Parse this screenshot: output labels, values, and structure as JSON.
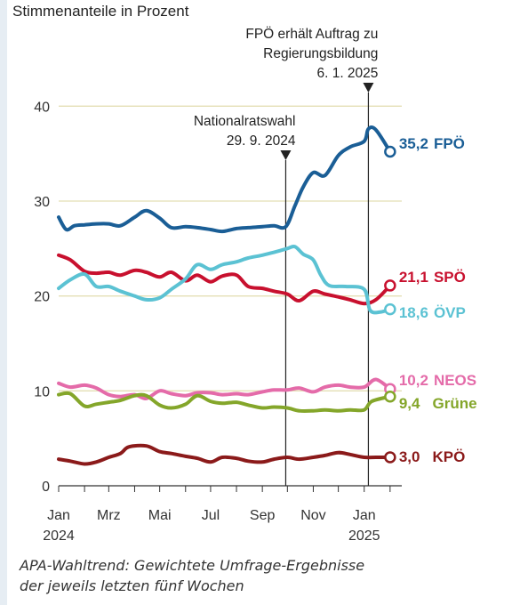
{
  "chart_data": {
    "type": "line",
    "subtitle": "Stimmenanteile in Prozent",
    "y_ticks": [
      0,
      10,
      20,
      30,
      40
    ],
    "ylim": [
      0,
      42
    ],
    "xlim": [
      "2024-01-01",
      "2025-02-15"
    ],
    "x_ticks": [
      {
        "date": "2024-01-01",
        "label": "Jan",
        "year": "2024"
      },
      {
        "date": "2024-03-01",
        "label": "Mrz",
        "year": ""
      },
      {
        "date": "2024-05-01",
        "label": "Mai",
        "year": ""
      },
      {
        "date": "2024-07-01",
        "label": "Jul",
        "year": ""
      },
      {
        "date": "2024-09-01",
        "label": "Sep",
        "year": ""
      },
      {
        "date": "2024-11-01",
        "label": "Nov",
        "year": ""
      },
      {
        "date": "2025-01-01",
        "label": "Jan",
        "year": "2025"
      }
    ],
    "annotations": [
      {
        "date": "2024-09-29",
        "lines": [
          "Nationalratswahl",
          "29. 9. 2024"
        ]
      },
      {
        "date": "2025-01-06",
        "lines": [
          "FPÖ erhält Auftrag zu",
          "Regierungsbildung",
          "6. 1. 2025"
        ]
      }
    ],
    "series": [
      {
        "name": "FPÖ",
        "color": "#1a5e96",
        "end_label": "35,2",
        "end_value": 35.2,
        "points": [
          [
            "2024-01-01",
            28.3
          ],
          [
            "2024-01-10",
            27.0
          ],
          [
            "2024-01-20",
            27.4
          ],
          [
            "2024-02-01",
            27.5
          ],
          [
            "2024-02-15",
            27.6
          ],
          [
            "2024-03-01",
            27.6
          ],
          [
            "2024-03-15",
            27.4
          ],
          [
            "2024-04-01",
            28.3
          ],
          [
            "2024-04-15",
            29.0
          ],
          [
            "2024-05-01",
            28.2
          ],
          [
            "2024-05-15",
            27.2
          ],
          [
            "2024-06-01",
            27.3
          ],
          [
            "2024-06-15",
            27.2
          ],
          [
            "2024-07-01",
            27.0
          ],
          [
            "2024-07-15",
            26.8
          ],
          [
            "2024-08-01",
            27.1
          ],
          [
            "2024-08-15",
            27.2
          ],
          [
            "2024-09-01",
            27.3
          ],
          [
            "2024-09-15",
            27.4
          ],
          [
            "2024-09-29",
            27.3
          ],
          [
            "2024-10-10",
            29.5
          ],
          [
            "2024-10-20",
            31.5
          ],
          [
            "2024-11-01",
            33.0
          ],
          [
            "2024-11-15",
            32.7
          ],
          [
            "2024-12-01",
            34.8
          ],
          [
            "2024-12-15",
            35.7
          ],
          [
            "2025-01-01",
            36.3
          ],
          [
            "2025-01-06",
            37.6
          ],
          [
            "2025-01-15",
            37.5
          ],
          [
            "2025-02-01",
            35.2
          ]
        ]
      },
      {
        "name": "SPÖ",
        "color": "#c8102e",
        "end_label": "21,1",
        "end_value": 21.1,
        "points": [
          [
            "2024-01-01",
            24.3
          ],
          [
            "2024-01-15",
            23.8
          ],
          [
            "2024-02-01",
            22.6
          ],
          [
            "2024-02-15",
            22.4
          ],
          [
            "2024-03-01",
            22.5
          ],
          [
            "2024-03-15",
            22.2
          ],
          [
            "2024-04-01",
            22.7
          ],
          [
            "2024-04-15",
            22.5
          ],
          [
            "2024-05-01",
            22.0
          ],
          [
            "2024-05-15",
            22.5
          ],
          [
            "2024-06-01",
            21.6
          ],
          [
            "2024-06-15",
            22.2
          ],
          [
            "2024-07-01",
            21.5
          ],
          [
            "2024-07-15",
            22.1
          ],
          [
            "2024-08-01",
            22.2
          ],
          [
            "2024-08-15",
            21.0
          ],
          [
            "2024-09-01",
            20.8
          ],
          [
            "2024-09-15",
            20.5
          ],
          [
            "2024-10-01",
            20.2
          ],
          [
            "2024-10-15",
            19.5
          ],
          [
            "2024-11-01",
            20.5
          ],
          [
            "2024-11-15",
            20.2
          ],
          [
            "2024-12-01",
            19.9
          ],
          [
            "2024-12-15",
            19.6
          ],
          [
            "2025-01-01",
            19.2
          ],
          [
            "2025-01-15",
            19.6
          ],
          [
            "2025-02-01",
            21.1
          ]
        ]
      },
      {
        "name": "ÖVP",
        "color": "#5bc2d3",
        "end_label": "18,6",
        "end_value": 18.6,
        "points": [
          [
            "2024-01-01",
            20.8
          ],
          [
            "2024-01-15",
            21.7
          ],
          [
            "2024-02-01",
            22.3
          ],
          [
            "2024-02-15",
            21.0
          ],
          [
            "2024-03-01",
            21.0
          ],
          [
            "2024-03-15",
            20.5
          ],
          [
            "2024-04-01",
            20.0
          ],
          [
            "2024-04-15",
            19.6
          ],
          [
            "2024-05-01",
            19.8
          ],
          [
            "2024-05-15",
            20.7
          ],
          [
            "2024-06-01",
            21.8
          ],
          [
            "2024-06-15",
            23.3
          ],
          [
            "2024-07-01",
            22.8
          ],
          [
            "2024-07-15",
            23.3
          ],
          [
            "2024-08-01",
            23.6
          ],
          [
            "2024-08-15",
            24.0
          ],
          [
            "2024-09-01",
            24.3
          ],
          [
            "2024-09-15",
            24.6
          ],
          [
            "2024-10-01",
            25.0
          ],
          [
            "2024-10-10",
            25.2
          ],
          [
            "2024-10-20",
            24.4
          ],
          [
            "2024-11-01",
            23.8
          ],
          [
            "2024-11-10",
            22.2
          ],
          [
            "2024-11-20",
            21.1
          ],
          [
            "2024-12-10",
            21.0
          ],
          [
            "2025-01-01",
            20.7
          ],
          [
            "2025-01-08",
            18.5
          ],
          [
            "2025-01-20",
            18.3
          ],
          [
            "2025-02-01",
            18.6
          ]
        ]
      },
      {
        "name": "NEOS",
        "color": "#e46ba9",
        "end_label": "10,2",
        "end_value": 10.2,
        "points": [
          [
            "2024-01-01",
            10.8
          ],
          [
            "2024-01-15",
            10.4
          ],
          [
            "2024-02-01",
            10.6
          ],
          [
            "2024-02-15",
            10.3
          ],
          [
            "2024-03-01",
            9.6
          ],
          [
            "2024-03-15",
            9.4
          ],
          [
            "2024-04-01",
            9.6
          ],
          [
            "2024-04-15",
            9.2
          ],
          [
            "2024-05-01",
            10.0
          ],
          [
            "2024-05-15",
            9.7
          ],
          [
            "2024-06-01",
            9.5
          ],
          [
            "2024-06-15",
            9.8
          ],
          [
            "2024-07-01",
            9.8
          ],
          [
            "2024-07-15",
            9.6
          ],
          [
            "2024-08-01",
            9.7
          ],
          [
            "2024-08-15",
            9.6
          ],
          [
            "2024-09-01",
            9.9
          ],
          [
            "2024-09-15",
            10.1
          ],
          [
            "2024-10-01",
            10.1
          ],
          [
            "2024-10-15",
            10.3
          ],
          [
            "2024-11-01",
            9.9
          ],
          [
            "2024-11-15",
            10.4
          ],
          [
            "2024-12-01",
            10.6
          ],
          [
            "2024-12-15",
            10.4
          ],
          [
            "2025-01-01",
            10.4
          ],
          [
            "2025-01-15",
            11.2
          ],
          [
            "2025-02-01",
            10.2
          ]
        ]
      },
      {
        "name": "Grüne",
        "color": "#84a62a",
        "end_label": "9,4",
        "end_value": 9.4,
        "points": [
          [
            "2024-01-01",
            9.6
          ],
          [
            "2024-01-15",
            9.7
          ],
          [
            "2024-02-01",
            8.4
          ],
          [
            "2024-02-15",
            8.6
          ],
          [
            "2024-03-01",
            8.8
          ],
          [
            "2024-03-15",
            9.0
          ],
          [
            "2024-04-01",
            9.5
          ],
          [
            "2024-04-15",
            9.5
          ],
          [
            "2024-05-01",
            8.5
          ],
          [
            "2024-05-15",
            8.2
          ],
          [
            "2024-06-01",
            8.6
          ],
          [
            "2024-06-15",
            9.5
          ],
          [
            "2024-07-01",
            8.9
          ],
          [
            "2024-07-15",
            8.7
          ],
          [
            "2024-08-01",
            8.8
          ],
          [
            "2024-08-15",
            8.5
          ],
          [
            "2024-09-01",
            8.2
          ],
          [
            "2024-09-15",
            8.3
          ],
          [
            "2024-10-01",
            8.2
          ],
          [
            "2024-10-15",
            7.9
          ],
          [
            "2024-11-01",
            7.9
          ],
          [
            "2024-11-15",
            8.0
          ],
          [
            "2024-12-01",
            7.9
          ],
          [
            "2024-12-15",
            8.0
          ],
          [
            "2025-01-01",
            8.0
          ],
          [
            "2025-01-10",
            8.9
          ],
          [
            "2025-02-01",
            9.4
          ]
        ]
      },
      {
        "name": "KPÖ",
        "color": "#8b1a1a",
        "end_label": "3,0",
        "end_value": 3.0,
        "points": [
          [
            "2024-01-01",
            2.8
          ],
          [
            "2024-01-15",
            2.6
          ],
          [
            "2024-02-01",
            2.3
          ],
          [
            "2024-02-15",
            2.5
          ],
          [
            "2024-03-01",
            3.0
          ],
          [
            "2024-03-15",
            3.4
          ],
          [
            "2024-03-25",
            4.1
          ],
          [
            "2024-04-15",
            4.2
          ],
          [
            "2024-05-01",
            3.6
          ],
          [
            "2024-05-15",
            3.4
          ],
          [
            "2024-06-01",
            3.1
          ],
          [
            "2024-06-15",
            2.9
          ],
          [
            "2024-07-01",
            2.5
          ],
          [
            "2024-07-15",
            3.0
          ],
          [
            "2024-08-01",
            2.9
          ],
          [
            "2024-08-15",
            2.6
          ],
          [
            "2024-09-01",
            2.5
          ],
          [
            "2024-09-15",
            2.8
          ],
          [
            "2024-10-01",
            3.0
          ],
          [
            "2024-10-15",
            2.8
          ],
          [
            "2024-11-01",
            3.0
          ],
          [
            "2024-11-15",
            3.2
          ],
          [
            "2024-12-01",
            3.5
          ],
          [
            "2024-12-15",
            3.3
          ],
          [
            "2025-01-01",
            3.0
          ],
          [
            "2025-01-15",
            3.0
          ],
          [
            "2025-02-01",
            3.0
          ]
        ]
      }
    ]
  },
  "caption": {
    "line1": "APA-Wahltrend: Gewichtete Umfrage-Ergebnisse",
    "line2": "der jeweils letzten fünf Wochen"
  },
  "colors": {
    "grid": "#e4dfb4",
    "axis_text": "#333333",
    "annotation_line": "#222222"
  }
}
